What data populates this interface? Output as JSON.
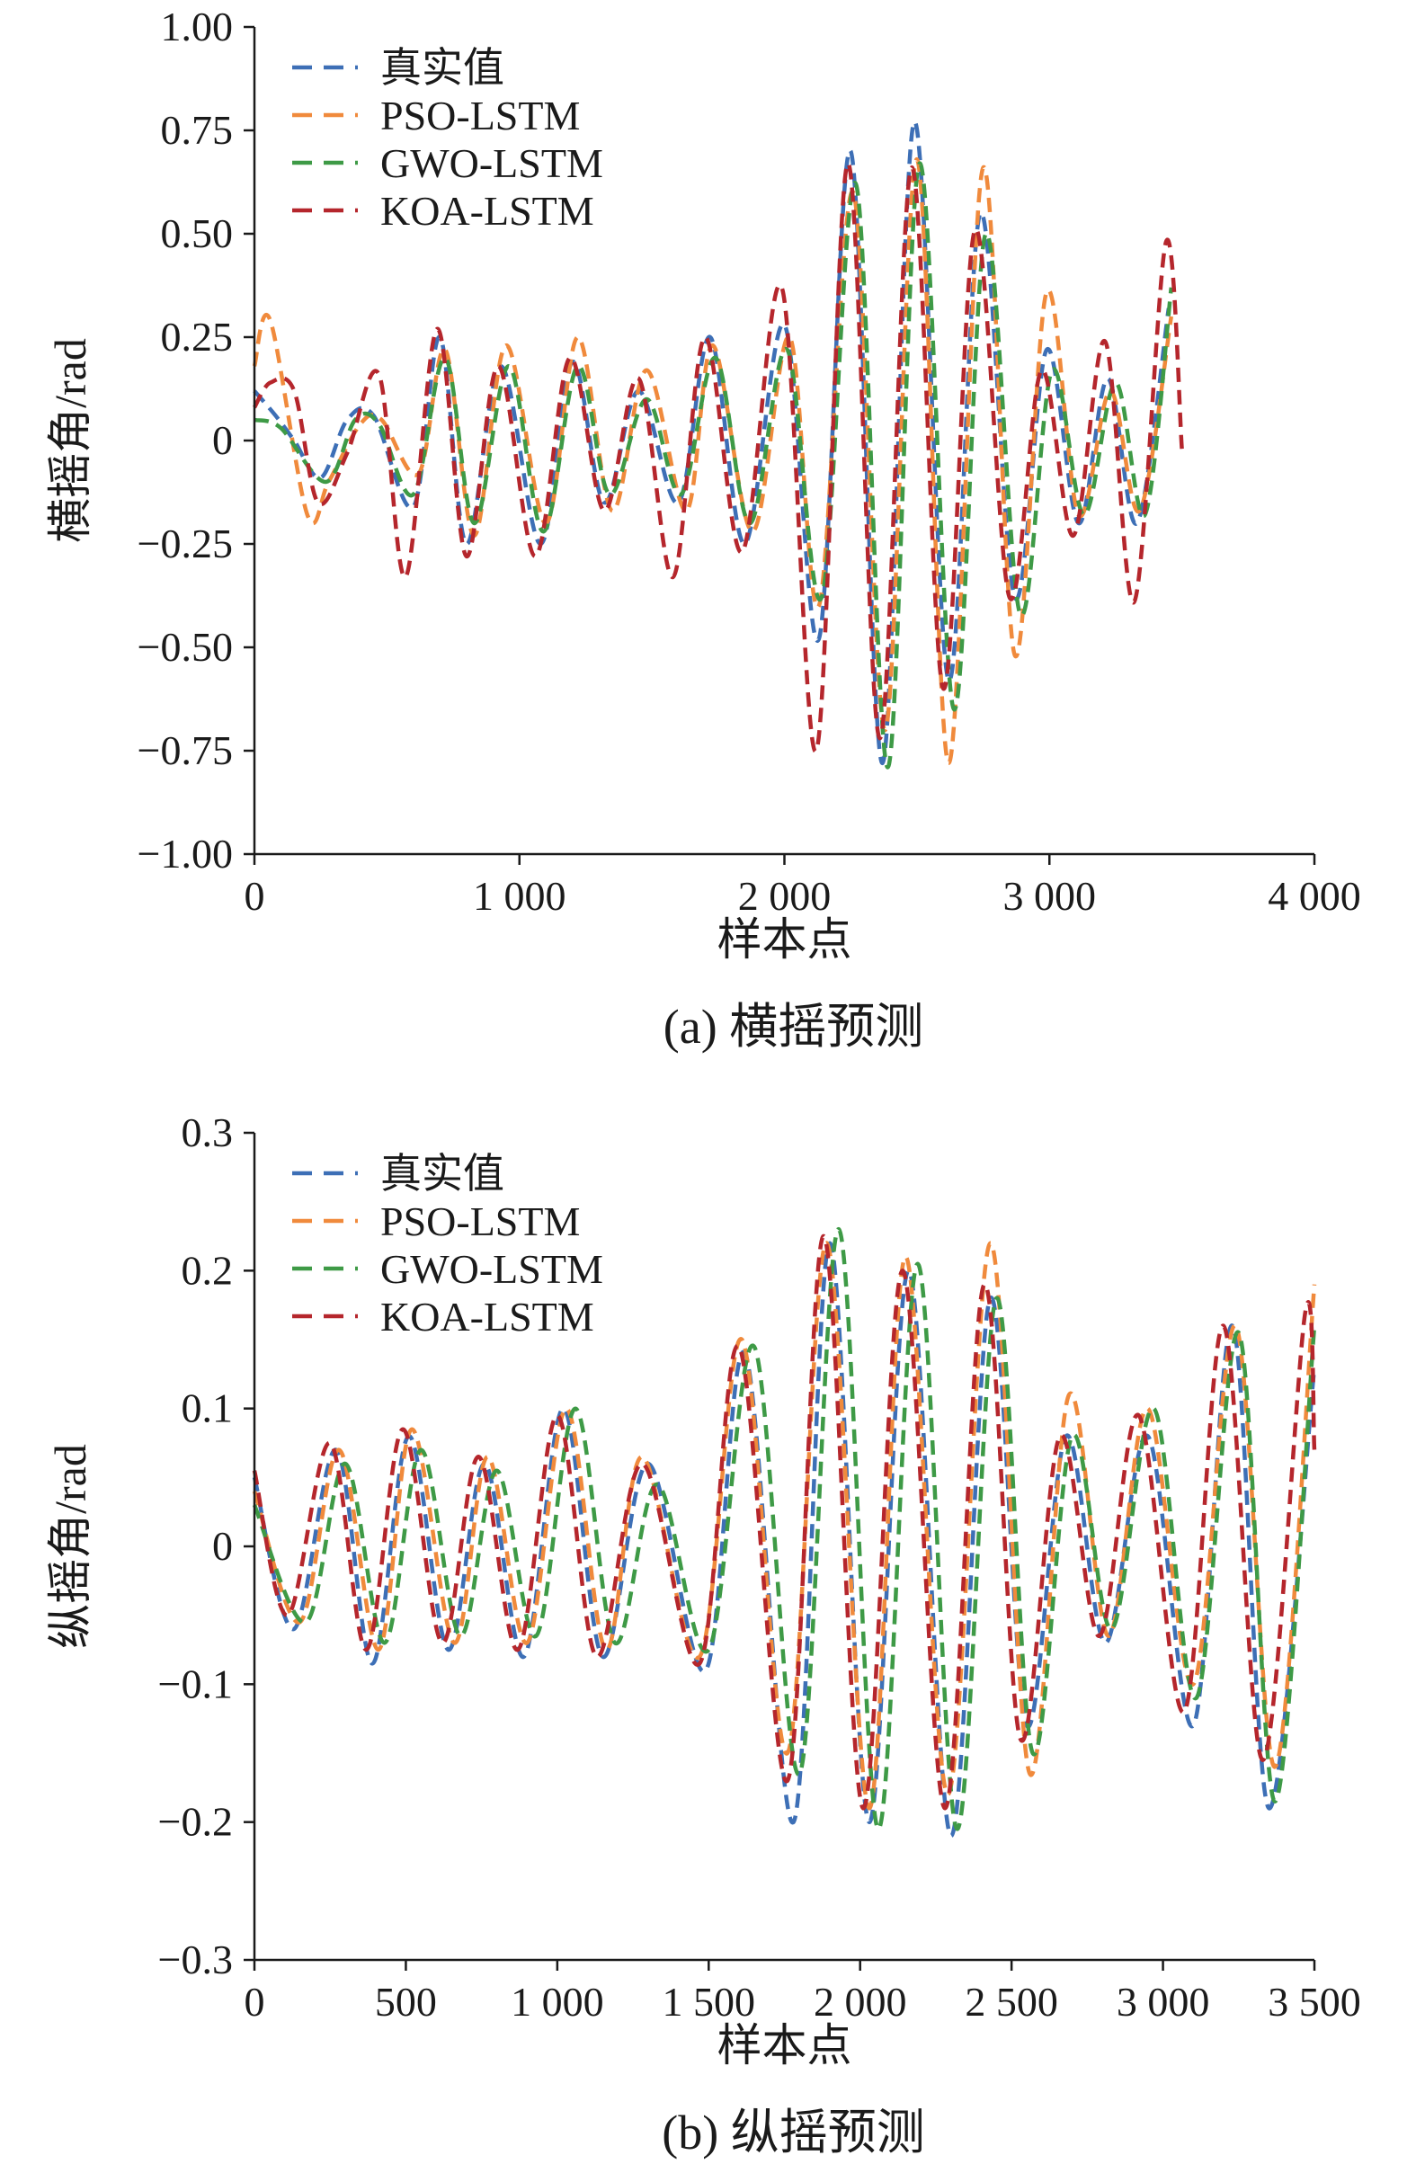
{
  "chart_data": [
    {
      "type": "line",
      "caption": "(a) 横摇预测",
      "xlabel": "样本点",
      "ylabel": "横摇角/rad",
      "xlim": [
        0,
        4000
      ],
      "ylim": [
        -1.0,
        1.0
      ],
      "xticks": [
        0,
        1000,
        2000,
        3000,
        4000
      ],
      "xtick_labels": [
        "0",
        "1 000",
        "2 000",
        "3 000",
        "4 000"
      ],
      "yticks": [
        1.0,
        0.75,
        0.5,
        0.25,
        0,
        -0.25,
        -0.5,
        -0.75,
        -1.0
      ],
      "ytick_labels": [
        "1.00",
        "0.75",
        "0.50",
        "0.25",
        "0",
        "−0.25",
        "−0.50",
        "−0.75",
        "−1.00"
      ],
      "legend_position": "top-left",
      "line_style": "dashed",
      "series": [
        {
          "name": "真实值",
          "color": "#3d6fb6",
          "x": [
            0,
            80,
            150,
            250,
            350,
            450,
            600,
            700,
            800,
            930,
            1080,
            1200,
            1320,
            1450,
            1600,
            1720,
            1850,
            2000,
            2130,
            2250,
            2370,
            2490,
            2620,
            2740,
            2870,
            2990,
            3110,
            3220,
            3330,
            3450
          ],
          "y": [
            0.12,
            0.06,
            0.0,
            -0.09,
            0.05,
            0.06,
            -0.16,
            0.25,
            -0.25,
            0.18,
            -0.25,
            0.19,
            -0.15,
            0.12,
            -0.15,
            0.25,
            -0.25,
            0.28,
            -0.48,
            0.7,
            -0.78,
            0.77,
            -0.58,
            0.55,
            -0.38,
            0.22,
            -0.2,
            0.15,
            -0.2,
            0.32
          ]
        },
        {
          "name": "PSO-LSTM",
          "color": "#f08a3c",
          "x": [
            0,
            60,
            200,
            280,
            400,
            480,
            620,
            720,
            830,
            950,
            1100,
            1220,
            1350,
            1480,
            1630,
            1730,
            1880,
            2020,
            2130,
            2260,
            2380,
            2500,
            2620,
            2750,
            2870,
            2990,
            3110,
            3230,
            3340,
            3460
          ],
          "y": [
            0.18,
            0.29,
            -0.18,
            -0.1,
            0.04,
            0.05,
            -0.08,
            0.22,
            -0.23,
            0.23,
            -0.2,
            0.25,
            -0.17,
            0.17,
            -0.17,
            0.23,
            -0.22,
            0.25,
            -0.4,
            0.6,
            -0.7,
            0.68,
            -0.78,
            0.66,
            -0.52,
            0.36,
            -0.18,
            0.12,
            -0.17,
            0.3
          ]
        },
        {
          "name": "GWO-LSTM",
          "color": "#3e9a46",
          "x": [
            0,
            100,
            270,
            380,
            470,
            600,
            720,
            830,
            960,
            1090,
            1220,
            1340,
            1480,
            1610,
            1740,
            1870,
            2010,
            2140,
            2270,
            2390,
            2510,
            2640,
            2760,
            2890,
            3010,
            3130,
            3250,
            3360,
            3460
          ],
          "y": [
            0.05,
            0.03,
            -0.1,
            0.05,
            0.04,
            -0.13,
            0.2,
            -0.2,
            0.18,
            -0.22,
            0.18,
            -0.13,
            0.1,
            -0.13,
            0.2,
            -0.2,
            0.22,
            -0.38,
            0.62,
            -0.79,
            0.67,
            -0.65,
            0.5,
            -0.42,
            0.17,
            -0.18,
            0.14,
            -0.18,
            0.37
          ]
        },
        {
          "name": "KOA-LSTM",
          "color": "#b5262c",
          "x": [
            0,
            60,
            150,
            240,
            350,
            470,
            570,
            690,
            800,
            920,
            1060,
            1190,
            1320,
            1450,
            1580,
            1700,
            1840,
            1990,
            2120,
            2240,
            2360,
            2480,
            2600,
            2720,
            2850,
            2970,
            3090,
            3210,
            3320,
            3440,
            3500
          ],
          "y": [
            0.08,
            0.14,
            0.12,
            -0.15,
            -0.03,
            0.16,
            -0.33,
            0.27,
            -0.28,
            0.18,
            -0.28,
            0.2,
            -0.17,
            0.15,
            -0.33,
            0.25,
            -0.27,
            0.37,
            -0.75,
            0.67,
            -0.72,
            0.66,
            -0.6,
            0.51,
            -0.38,
            0.17,
            -0.23,
            0.24,
            -0.39,
            0.48,
            -0.02
          ]
        }
      ]
    },
    {
      "type": "line",
      "caption": "(b) 纵摇预测",
      "xlabel": "样本点",
      "ylabel": "纵摇角/rad",
      "xlim": [
        0,
        3500
      ],
      "ylim": [
        -0.3,
        0.3
      ],
      "xticks": [
        0,
        500,
        1000,
        1500,
        2000,
        2500,
        3000,
        3500
      ],
      "xtick_labels": [
        "0",
        "500",
        "1 000",
        "1 500",
        "2 000",
        "2 500",
        "3 000",
        "3 500"
      ],
      "yticks": [
        0.3,
        0.2,
        0.1,
        0,
        -0.1,
        -0.2,
        -0.3
      ],
      "ytick_labels": [
        "0.3",
        "0.2",
        "0.1",
        "0",
        "−0.1",
        "−0.2",
        "−0.3"
      ],
      "legend_position": "top-left",
      "line_style": "dashed",
      "series": [
        {
          "name": "真实值",
          "color": "#3d6fb6",
          "x": [
            0,
            130,
            270,
            390,
            510,
            640,
            760,
            890,
            1020,
            1150,
            1300,
            1490,
            1620,
            1780,
            1900,
            2030,
            2160,
            2300,
            2430,
            2550,
            2680,
            2810,
            2950,
            3100,
            3230,
            3350,
            3500
          ],
          "y": [
            0.05,
            -0.06,
            0.07,
            -0.085,
            0.08,
            -0.075,
            0.06,
            -0.08,
            0.1,
            -0.08,
            0.06,
            -0.09,
            0.14,
            -0.2,
            0.22,
            -0.2,
            0.2,
            -0.21,
            0.18,
            -0.13,
            0.08,
            -0.07,
            0.08,
            -0.13,
            0.16,
            -0.19,
            0.13
          ]
        },
        {
          "name": "PSO-LSTM",
          "color": "#f08a3c",
          "x": [
            0,
            150,
            280,
            410,
            520,
            660,
            770,
            900,
            1030,
            1160,
            1280,
            1470,
            1610,
            1760,
            1890,
            2030,
            2150,
            2290,
            2430,
            2560,
            2690,
            2820,
            2950,
            3100,
            3240,
            3370,
            3500
          ],
          "y": [
            0.04,
            -0.055,
            0.07,
            -0.075,
            0.085,
            -0.07,
            0.065,
            -0.07,
            0.1,
            -0.075,
            0.065,
            -0.08,
            0.15,
            -0.15,
            0.22,
            -0.19,
            0.21,
            -0.18,
            0.22,
            -0.165,
            0.11,
            -0.065,
            0.1,
            -0.1,
            0.16,
            -0.16,
            0.19
          ]
        },
        {
          "name": "GWO-LSTM",
          "color": "#3e9a46",
          "x": [
            0,
            170,
            300,
            430,
            550,
            680,
            800,
            930,
            1060,
            1190,
            1330,
            1500,
            1650,
            1800,
            1930,
            2060,
            2190,
            2320,
            2450,
            2570,
            2700,
            2830,
            2970,
            3110,
            3250,
            3370,
            3500
          ],
          "y": [
            0.03,
            -0.055,
            0.06,
            -0.07,
            0.07,
            -0.065,
            0.055,
            -0.065,
            0.1,
            -0.07,
            0.045,
            -0.075,
            0.145,
            -0.165,
            0.23,
            -0.205,
            0.205,
            -0.205,
            0.18,
            -0.15,
            0.08,
            -0.06,
            0.1,
            -0.11,
            0.155,
            -0.185,
            0.16
          ]
        },
        {
          "name": "KOA-LSTM",
          "color": "#b5262c",
          "x": [
            0,
            110,
            250,
            370,
            490,
            620,
            740,
            870,
            1000,
            1130,
            1280,
            1470,
            1600,
            1760,
            1880,
            2010,
            2140,
            2280,
            2410,
            2530,
            2660,
            2790,
            2920,
            3070,
            3200,
            3330,
            3470,
            3500
          ],
          "y": [
            0.055,
            -0.05,
            0.075,
            -0.075,
            0.085,
            -0.07,
            0.065,
            -0.075,
            0.095,
            -0.08,
            0.06,
            -0.085,
            0.145,
            -0.17,
            0.225,
            -0.19,
            0.2,
            -0.19,
            0.19,
            -0.14,
            0.08,
            -0.065,
            0.095,
            -0.12,
            0.16,
            -0.155,
            0.17,
            0.07
          ]
        }
      ]
    }
  ]
}
